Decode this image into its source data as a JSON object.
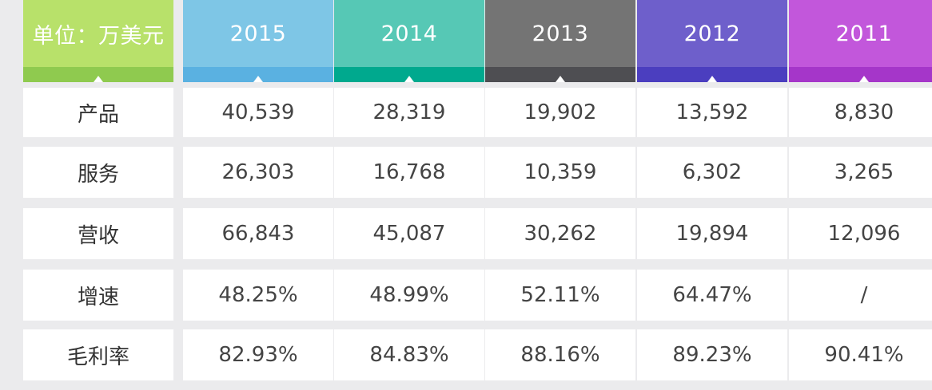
{
  "chart_data": {
    "type": "table",
    "corner_label": "单位：万美元",
    "columns": [
      {
        "label": "2015",
        "top_color": "#7ec6e6",
        "band_color": "#5ab1e1"
      },
      {
        "label": "2014",
        "top_color": "#56c8b5",
        "band_color": "#00a98e"
      },
      {
        "label": "2013",
        "top_color": "#747474",
        "band_color": "#4e4e52"
      },
      {
        "label": "2012",
        "top_color": "#6e5fcb",
        "band_color": "#4b3ebf"
      },
      {
        "label": "2011",
        "top_color": "#c257db",
        "band_color": "#a536c9"
      }
    ],
    "corner_colors": {
      "top_color": "#b8e16a",
      "band_color": "#8fca4f"
    },
    "rows": [
      {
        "label": "产品",
        "values": [
          "40,539",
          "28,319",
          "19,902",
          "13,592",
          "8,830"
        ]
      },
      {
        "label": "服务",
        "values": [
          "26,303",
          "16,768",
          "10,359",
          "6,302",
          "3,265"
        ]
      },
      {
        "label": "营收",
        "values": [
          "66,843",
          "45,087",
          "30,262",
          "19,894",
          "12,096"
        ]
      },
      {
        "label": "增速",
        "values": [
          "48.25%",
          "48.99%",
          "52.11%",
          "64.47%",
          "/"
        ]
      },
      {
        "label": "毛利率",
        "values": [
          "82.93%",
          "84.83%",
          "88.16%",
          "89.23%",
          "90.41%"
        ]
      }
    ]
  }
}
